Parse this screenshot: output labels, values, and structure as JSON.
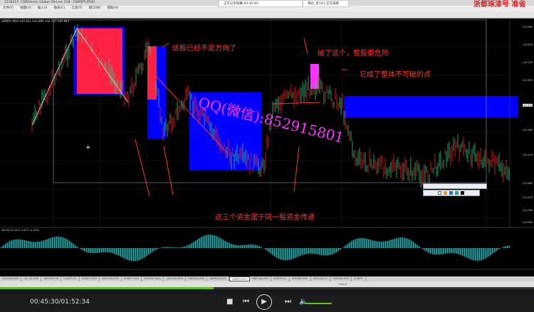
{
  "window": {
    "title": "2238417: FOREXcom Global CN-Live 118 - [GBPJPY,M30]",
    "menu": [
      "文件(F)",
      "视图(V)",
      "插入(I)",
      "图表(C)",
      "工具(T)",
      "窗口(W)",
      "帮助(H)"
    ]
  },
  "notices": {
    "left": "正在分享屏幕    00:45:40",
    "right": "嗨达_等14人正在观看"
  },
  "brand": "浙都琢漆号 准省",
  "chart": {
    "info": "GBPJPY,M30  142.851 142.880 142.757 142.843",
    "annotations": [
      "这股已经不是方向了",
      "破了这个，整股都危险",
      "它成了整体不可破的点",
      "这三个资金属于同一股资金传递"
    ],
    "watermark": "QQ(微信):852915801",
    "price_labels": [
      "143.960",
      "143.600",
      "143.295",
      "142.905",
      "142.843",
      "142.580",
      "142.240",
      "141.880",
      "141.475",
      "141.280",
      "141.065"
    ],
    "indicator_label": "MACD(12,26,9) 0.0071 0.0052",
    "colors": {
      "bull": "#22cc88",
      "bear": "#ff2222",
      "zone_blue": "#0000ff",
      "zone_red": "#ff2244",
      "zone_magenta": "#ff33ff",
      "annotation": "#ff3333"
    }
  },
  "symbol_tabs": [
    "XAUUSD,M30",
    "US_OIL,M30",
    "GBPUSD,H4",
    "CADJPY,H1",
    "AUDJPY,M30",
    "NZDUSD,M30",
    "EURJPY,M30",
    "USDCHF,Daily",
    "USDCAD,M30",
    "GBPAUD,M30",
    "GBPNZD,M30",
    "GBPJPY,M30",
    "GBPCAD,M30",
    "EURJPY,H1",
    "EURGBP,M30",
    "EURCAD,H1",
    "CHFNAS,M30",
    "EURJPY"
  ],
  "active_tab": "GBPJPY,M30",
  "status": {
    "profile": "Default"
  },
  "player": {
    "current": "00:45:30",
    "total": "01:52:34",
    "timecode": "00:45:30/01:52:34",
    "progress": 0.4,
    "volume": 0.6
  }
}
